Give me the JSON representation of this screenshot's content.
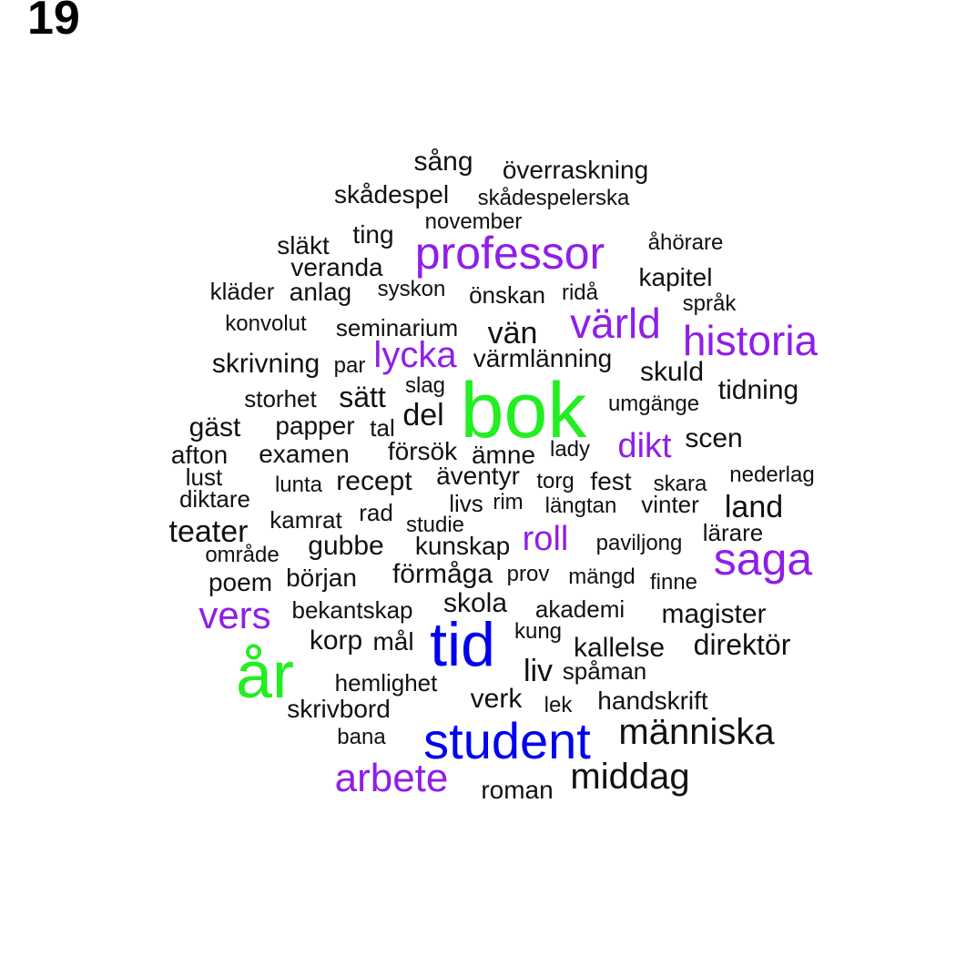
{
  "title": "19",
  "colors": {
    "green": "#22ee22",
    "blue": "#0000ee",
    "purple": "#8f1ee9",
    "black": "#111111"
  },
  "words": [
    {
      "text": "sång",
      "tier": "black"
    },
    {
      "text": "överraskning",
      "tier": "black"
    },
    {
      "text": "skådespel",
      "tier": "black"
    },
    {
      "text": "skådespelerska",
      "tier": "black"
    },
    {
      "text": "november",
      "tier": "black"
    },
    {
      "text": "ting",
      "tier": "black"
    },
    {
      "text": "släkt",
      "tier": "black"
    },
    {
      "text": "professor",
      "tier": "purple"
    },
    {
      "text": "åhörare",
      "tier": "black"
    },
    {
      "text": "veranda",
      "tier": "black"
    },
    {
      "text": "kapitel",
      "tier": "black"
    },
    {
      "text": "kläder",
      "tier": "black"
    },
    {
      "text": "anlag",
      "tier": "black"
    },
    {
      "text": "syskon",
      "tier": "black"
    },
    {
      "text": "önskan",
      "tier": "black"
    },
    {
      "text": "ridå",
      "tier": "black"
    },
    {
      "text": "språk",
      "tier": "black"
    },
    {
      "text": "värld",
      "tier": "purple"
    },
    {
      "text": "konvolut",
      "tier": "black"
    },
    {
      "text": "seminarium",
      "tier": "black"
    },
    {
      "text": "vän",
      "tier": "black"
    },
    {
      "text": "historia",
      "tier": "purple"
    },
    {
      "text": "lycka",
      "tier": "purple"
    },
    {
      "text": "skrivning",
      "tier": "black"
    },
    {
      "text": "par",
      "tier": "black"
    },
    {
      "text": "värmlänning",
      "tier": "black"
    },
    {
      "text": "skuld",
      "tier": "black"
    },
    {
      "text": "slag",
      "tier": "black"
    },
    {
      "text": "bok",
      "tier": "green"
    },
    {
      "text": "storhet",
      "tier": "black"
    },
    {
      "text": "sätt",
      "tier": "black"
    },
    {
      "text": "tidning",
      "tier": "black"
    },
    {
      "text": "umgänge",
      "tier": "black"
    },
    {
      "text": "del",
      "tier": "black"
    },
    {
      "text": "gäst",
      "tier": "black"
    },
    {
      "text": "papper",
      "tier": "black"
    },
    {
      "text": "tal",
      "tier": "black"
    },
    {
      "text": "scen",
      "tier": "black"
    },
    {
      "text": "dikt",
      "tier": "purple"
    },
    {
      "text": "afton",
      "tier": "black"
    },
    {
      "text": "examen",
      "tier": "black"
    },
    {
      "text": "försök",
      "tier": "black"
    },
    {
      "text": "ämne",
      "tier": "black"
    },
    {
      "text": "lady",
      "tier": "black"
    },
    {
      "text": "lust",
      "tier": "black"
    },
    {
      "text": "lunta",
      "tier": "black"
    },
    {
      "text": "recept",
      "tier": "black"
    },
    {
      "text": "äventyr",
      "tier": "black"
    },
    {
      "text": "torg",
      "tier": "black"
    },
    {
      "text": "fest",
      "tier": "black"
    },
    {
      "text": "skara",
      "tier": "black"
    },
    {
      "text": "nederlag",
      "tier": "black"
    },
    {
      "text": "diktare",
      "tier": "black"
    },
    {
      "text": "livs",
      "tier": "black"
    },
    {
      "text": "rim",
      "tier": "black"
    },
    {
      "text": "längtan",
      "tier": "black"
    },
    {
      "text": "vinter",
      "tier": "black"
    },
    {
      "text": "land",
      "tier": "black"
    },
    {
      "text": "kamrat",
      "tier": "black"
    },
    {
      "text": "rad",
      "tier": "black"
    },
    {
      "text": "studie",
      "tier": "black"
    },
    {
      "text": "teater",
      "tier": "black"
    },
    {
      "text": "lärare",
      "tier": "black"
    },
    {
      "text": "roll",
      "tier": "purple"
    },
    {
      "text": "paviljong",
      "tier": "black"
    },
    {
      "text": "gubbe",
      "tier": "black"
    },
    {
      "text": "kunskap",
      "tier": "black"
    },
    {
      "text": "område",
      "tier": "black"
    },
    {
      "text": "saga",
      "tier": "purple"
    },
    {
      "text": "förmåga",
      "tier": "black"
    },
    {
      "text": "prov",
      "tier": "black"
    },
    {
      "text": "mängd",
      "tier": "black"
    },
    {
      "text": "poem",
      "tier": "black"
    },
    {
      "text": "början",
      "tier": "black"
    },
    {
      "text": "finne",
      "tier": "black"
    },
    {
      "text": "skola",
      "tier": "black"
    },
    {
      "text": "vers",
      "tier": "purple"
    },
    {
      "text": "bekantskap",
      "tier": "black"
    },
    {
      "text": "akademi",
      "tier": "black"
    },
    {
      "text": "magister",
      "tier": "black"
    },
    {
      "text": "kung",
      "tier": "black"
    },
    {
      "text": "korp",
      "tier": "black"
    },
    {
      "text": "mål",
      "tier": "black"
    },
    {
      "text": "tid",
      "tier": "blue"
    },
    {
      "text": "kallelse",
      "tier": "black"
    },
    {
      "text": "direktör",
      "tier": "black"
    },
    {
      "text": "år",
      "tier": "green"
    },
    {
      "text": "liv",
      "tier": "black"
    },
    {
      "text": "spåman",
      "tier": "black"
    },
    {
      "text": "hemlighet",
      "tier": "black"
    },
    {
      "text": "verk",
      "tier": "black"
    },
    {
      "text": "lek",
      "tier": "black"
    },
    {
      "text": "handskrift",
      "tier": "black"
    },
    {
      "text": "skrivbord",
      "tier": "black"
    },
    {
      "text": "människa",
      "tier": "black"
    },
    {
      "text": "bana",
      "tier": "black"
    },
    {
      "text": "student",
      "tier": "blue"
    },
    {
      "text": "arbete",
      "tier": "purple"
    },
    {
      "text": "middag",
      "tier": "black"
    },
    {
      "text": "roman",
      "tier": "black"
    }
  ]
}
